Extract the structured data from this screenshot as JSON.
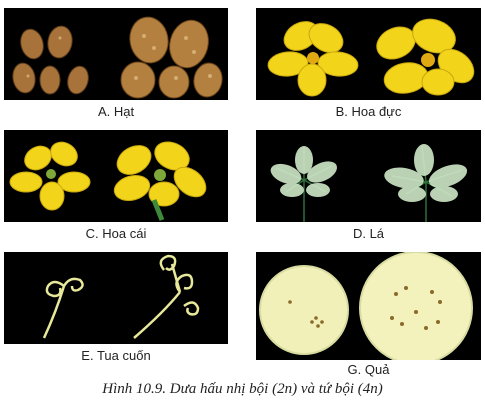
{
  "panels": [
    {
      "id": "A",
      "label": "A. Hạt"
    },
    {
      "id": "B",
      "label": "B. Hoa đực"
    },
    {
      "id": "C",
      "label": "C. Hoa cái"
    },
    {
      "id": "D",
      "label": "D. Lá"
    },
    {
      "id": "E",
      "label": "E. Tua cuốn"
    },
    {
      "id": "G",
      "label": "G. Quả"
    }
  ],
  "figure_caption": "Hình 10.9. Dưa hấu nhị bội (2n) và tứ bội (4n)",
  "colors": {
    "panel_bg": "#000000",
    "flower": "#f2d41a",
    "leaf": "#dff0dc",
    "seed": "#b07a3e",
    "fruit": "#f2f2b6"
  }
}
